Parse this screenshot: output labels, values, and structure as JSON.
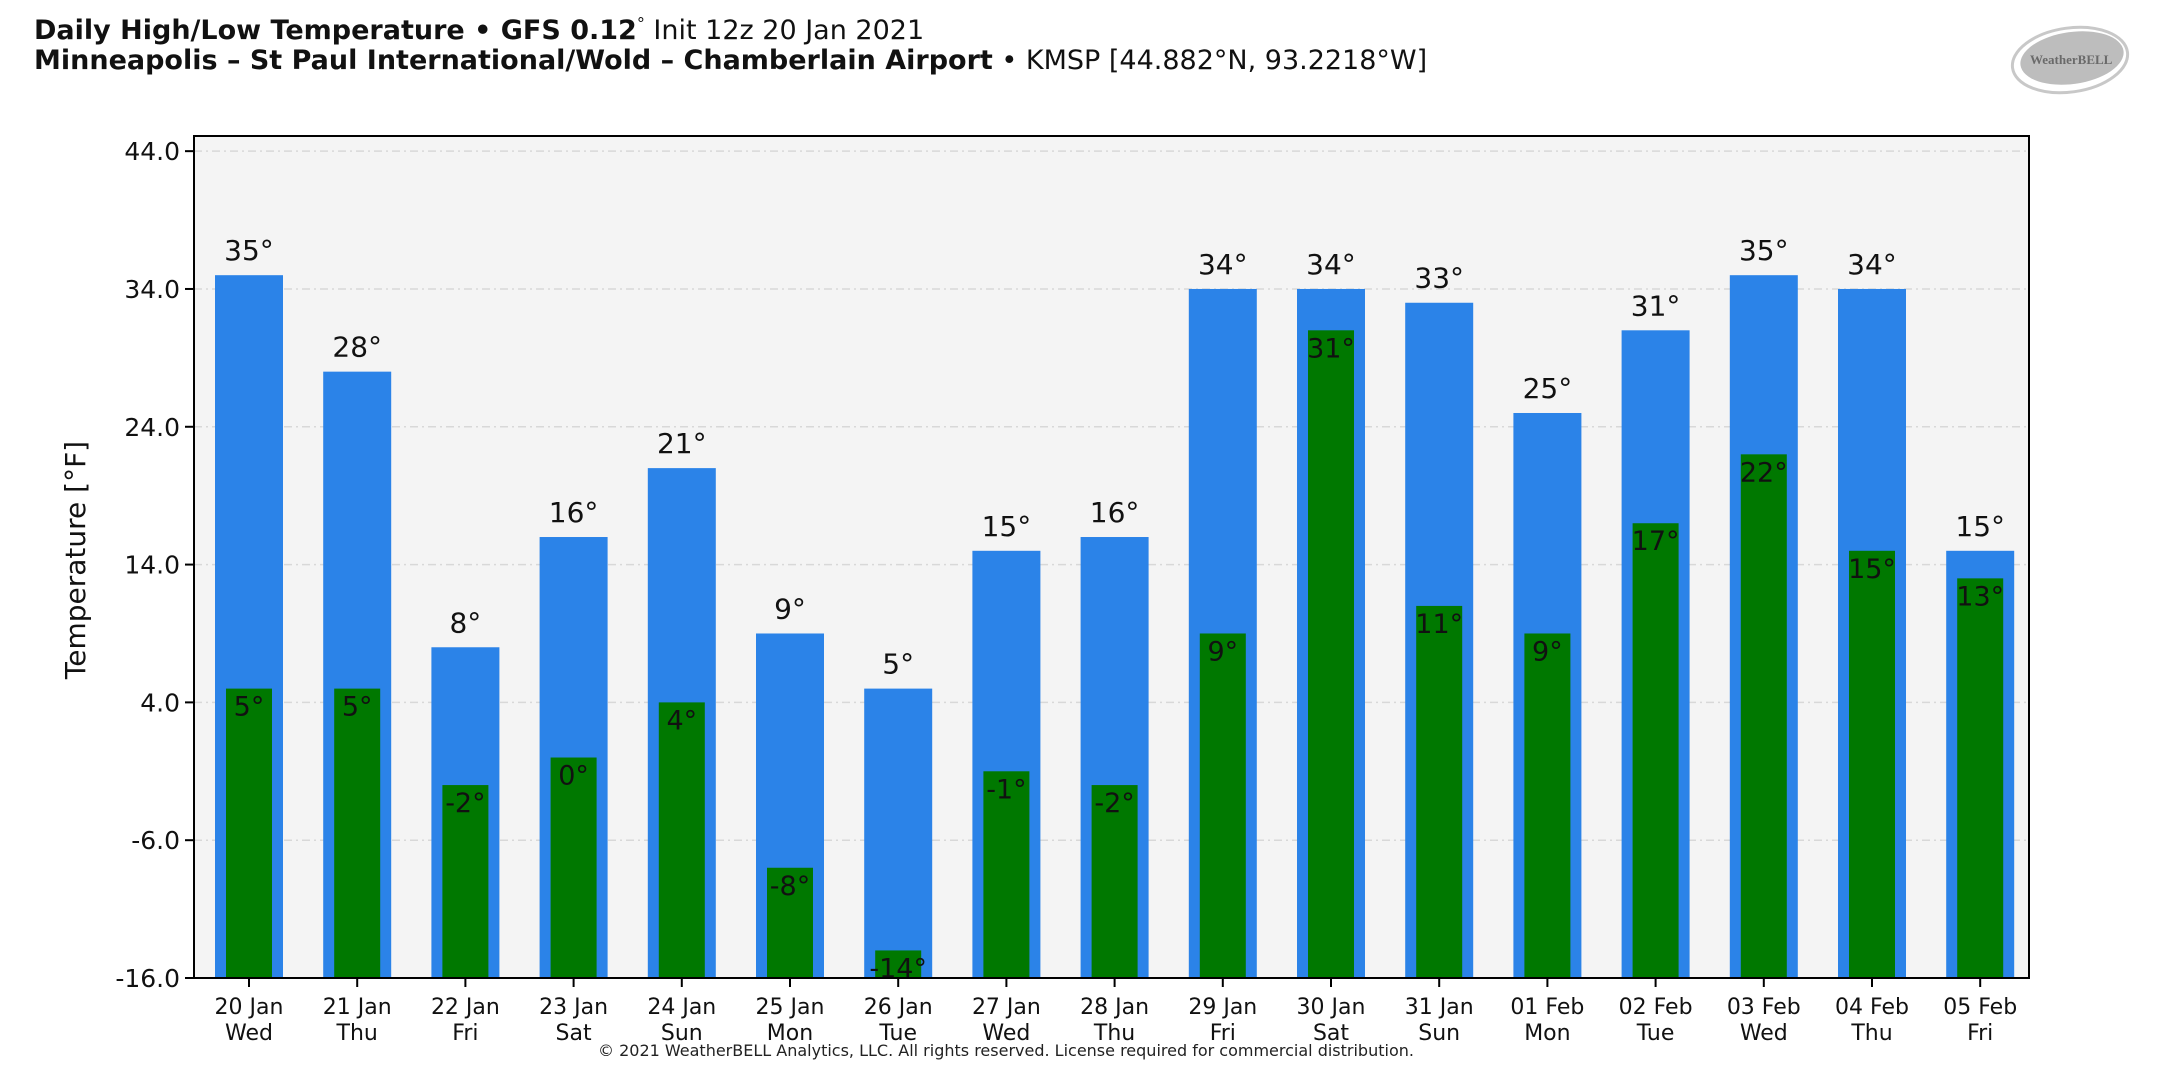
{
  "header": {
    "title_bold": "Daily High/Low Temperature • GFS 0.12",
    "title_deg": "°",
    "title_rest": " Init 12z 20 Jan 2021",
    "station_bold": "Minneapolis – St Paul International/Wold – Chamberlain Airport",
    "station_rest": " • KMSP [44.882°N, 93.2218°W]"
  },
  "logo": {
    "text": "WeatherBELL",
    "icon": "weatherbell-logo"
  },
  "footer": {
    "copyright": "© 2021 WeatherBELL Analytics, LLC. All rights reserved. License required for commercial distribution."
  },
  "colors": {
    "high": "#2b83e8",
    "low": "#007800",
    "plot_bg": "#f4f4f4"
  },
  "chart_data": {
    "type": "bar",
    "title": "Daily High/Low Temperature",
    "xlabel": "",
    "ylabel": "Temperature [°F]",
    "ylim": [
      -16.0,
      44.0
    ],
    "yticks": [
      "-16.0",
      "-6.0",
      "4.0",
      "14.0",
      "24.0",
      "34.0",
      "44.0"
    ],
    "ytick_values": [
      -16,
      -6,
      4,
      14,
      24,
      34,
      44
    ],
    "grid": true,
    "categories": [
      {
        "date": "20 Jan",
        "day": "Wed"
      },
      {
        "date": "21 Jan",
        "day": "Thu"
      },
      {
        "date": "22 Jan",
        "day": "Fri"
      },
      {
        "date": "23 Jan",
        "day": "Sat"
      },
      {
        "date": "24 Jan",
        "day": "Sun"
      },
      {
        "date": "25 Jan",
        "day": "Mon"
      },
      {
        "date": "26 Jan",
        "day": "Tue"
      },
      {
        "date": "27 Jan",
        "day": "Wed"
      },
      {
        "date": "28 Jan",
        "day": "Thu"
      },
      {
        "date": "29 Jan",
        "day": "Fri"
      },
      {
        "date": "30 Jan",
        "day": "Sat"
      },
      {
        "date": "31 Jan",
        "day": "Sun"
      },
      {
        "date": "01 Feb",
        "day": "Mon"
      },
      {
        "date": "02 Feb",
        "day": "Tue"
      },
      {
        "date": "03 Feb",
        "day": "Wed"
      },
      {
        "date": "04 Feb",
        "day": "Thu"
      },
      {
        "date": "05 Feb",
        "day": "Fri"
      }
    ],
    "series": [
      {
        "name": "High",
        "values": [
          35,
          28,
          8,
          16,
          21,
          9,
          5,
          15,
          16,
          34,
          34,
          33,
          25,
          31,
          35,
          34,
          15
        ],
        "labels": [
          "35°",
          "28°",
          "8°",
          "16°",
          "21°",
          "9°",
          "5°",
          "15°",
          "16°",
          "34°",
          "34°",
          "33°",
          "25°",
          "31°",
          "35°",
          "34°",
          "15°"
        ]
      },
      {
        "name": "Low",
        "values": [
          5,
          5,
          -2,
          0,
          4,
          -8,
          -14,
          -1,
          -2,
          9,
          31,
          11,
          9,
          17,
          22,
          15,
          13
        ],
        "labels": [
          "5°",
          "5°",
          "-2°",
          "0°",
          "4°",
          "-8°",
          "-14°",
          "-1°",
          "-2°",
          "9°",
          "31°",
          "11°",
          "9°",
          "17°",
          "22°",
          "15°",
          "13°"
        ]
      }
    ]
  }
}
